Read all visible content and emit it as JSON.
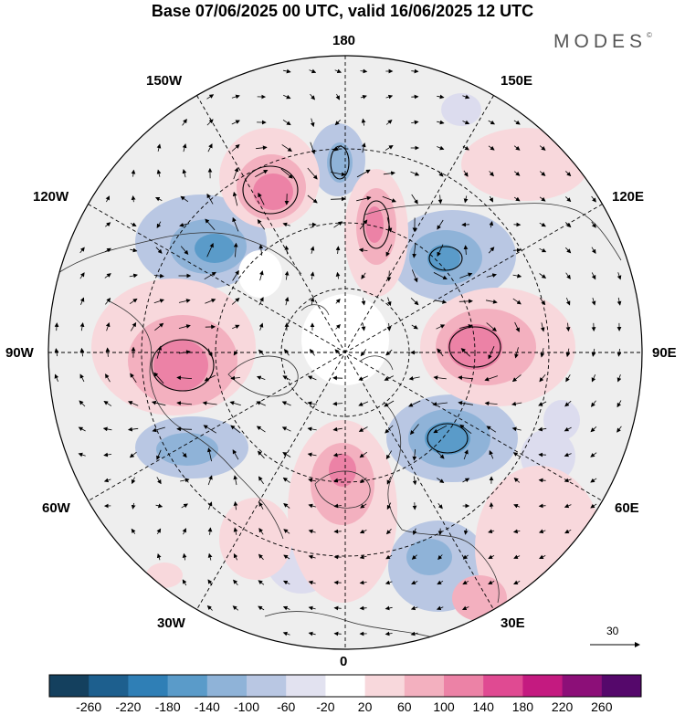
{
  "title": "Base 07/06/2025 00 UTC, valid 16/06/2025 12 UTC",
  "brand": "MODES",
  "brand_mark": "©",
  "longitude_labels": {
    "top": "180",
    "bottom": "0",
    "left": "90W",
    "right": "90E",
    "upper_left_1": "150W",
    "upper_left_2": "120W",
    "upper_right_1": "150E",
    "upper_right_2": "120E",
    "lower_left_1": "60W",
    "lower_left_2": "30W",
    "lower_right_1": "60E",
    "lower_right_2": "30E"
  },
  "vector_reference": {
    "value": "30"
  },
  "colorbar": {
    "labels": [
      "-260",
      "-220",
      "-180",
      "-140",
      "-100",
      "-60",
      "-20",
      "20",
      "60",
      "100",
      "140",
      "180",
      "220",
      "260"
    ],
    "colors": [
      "#14405e",
      "#1d5f8e",
      "#2f7fb6",
      "#5a9bc9",
      "#8fb3d8",
      "#b9c7e3",
      "#e2e2f0",
      "#ffffff",
      "#f8d8dc",
      "#f3b0bf",
      "#ec82a6",
      "#e04a92",
      "#c41a80",
      "#8c0f78",
      "#55086b"
    ]
  },
  "palette": {
    "neutral_fill": "#eeeeee",
    "blue_1": "#dcdcee",
    "blue_2": "#b9c7e3",
    "blue_3": "#8fb3d8",
    "blue_4": "#5a9bc9",
    "red_1": "#f8d8dc",
    "red_2": "#f3b0bf",
    "red_3": "#ec82a6"
  }
}
